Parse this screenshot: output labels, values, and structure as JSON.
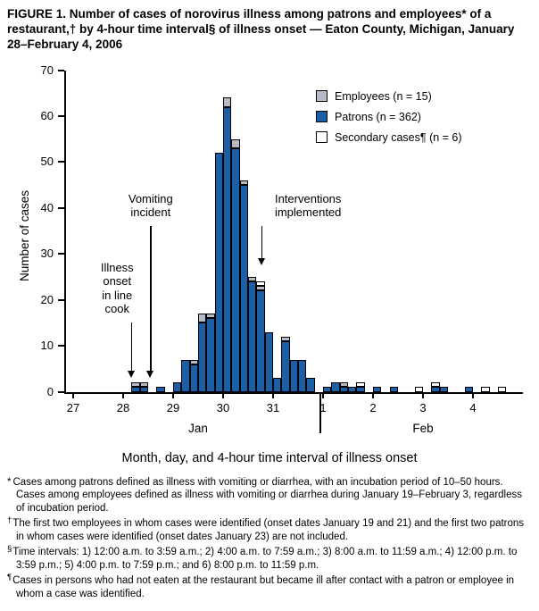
{
  "title": "FIGURE 1. Number of cases of norovirus illness among patrons and employees* of a restaurant,† by 4-hour time interval§ of illness onset — Eaton County, Michigan, January 28–February 4, 2006",
  "chart_data": {
    "type": "bar",
    "stacked": true,
    "ylabel": "Number of cases",
    "xlabel": "Month, day, and 4-hour time interval of illness onset",
    "ylim": [
      0,
      70
    ],
    "ytick_step": 10,
    "intervals_per_day": 6,
    "days": [
      "27",
      "28",
      "29",
      "30",
      "31",
      "1",
      "2",
      "3",
      "4"
    ],
    "months": [
      {
        "label": "Jan",
        "center_day_index": 2.5
      },
      {
        "label": "Feb",
        "center_day_index": 7
      }
    ],
    "month_separator_day_index": 5,
    "legend_position": "top-right",
    "grid": false,
    "legend": [
      {
        "key": "employees",
        "label": "Employees (n = 15)",
        "color": "#b6bac4"
      },
      {
        "key": "patrons",
        "label": "Patrons (n = 362)",
        "color": "#1d5fa6"
      },
      {
        "key": "secondary",
        "label": "Secondary cases¶ (n = 6)",
        "color": "#ffffff"
      }
    ],
    "series_order": [
      "patrons",
      "employees",
      "secondary"
    ],
    "bars": [
      {
        "day": "Jan 28",
        "d": 1,
        "i": 2,
        "patrons": 1,
        "employees": 1,
        "secondary": 0
      },
      {
        "day": "Jan 28",
        "d": 1,
        "i": 3,
        "patrons": 1,
        "employees": 1,
        "secondary": 0
      },
      {
        "day": "Jan 28",
        "d": 1,
        "i": 5,
        "patrons": 1,
        "employees": 0,
        "secondary": 0
      },
      {
        "day": "Jan 29",
        "d": 2,
        "i": 1,
        "patrons": 2,
        "employees": 0,
        "secondary": 0
      },
      {
        "day": "Jan 29",
        "d": 2,
        "i": 2,
        "patrons": 7,
        "employees": 0,
        "secondary": 0
      },
      {
        "day": "Jan 29",
        "d": 2,
        "i": 3,
        "patrons": 6,
        "employees": 1,
        "secondary": 0
      },
      {
        "day": "Jan 29",
        "d": 2,
        "i": 4,
        "patrons": 15,
        "employees": 2,
        "secondary": 0
      },
      {
        "day": "Jan 29",
        "d": 2,
        "i": 5,
        "patrons": 16,
        "employees": 1,
        "secondary": 0
      },
      {
        "day": "Jan 29",
        "d": 2,
        "i": 6,
        "patrons": 52,
        "employees": 0,
        "secondary": 0
      },
      {
        "day": "Jan 30",
        "d": 3,
        "i": 1,
        "patrons": 62,
        "employees": 2,
        "secondary": 0
      },
      {
        "day": "Jan 30",
        "d": 3,
        "i": 2,
        "patrons": 53,
        "employees": 2,
        "secondary": 0
      },
      {
        "day": "Jan 30",
        "d": 3,
        "i": 3,
        "patrons": 45,
        "employees": 1,
        "secondary": 0
      },
      {
        "day": "Jan 30",
        "d": 3,
        "i": 4,
        "patrons": 24,
        "employees": 1,
        "secondary": 0
      },
      {
        "day": "Jan 30",
        "d": 3,
        "i": 5,
        "patrons": 22,
        "employees": 1,
        "secondary": 1
      },
      {
        "day": "Jan 30",
        "d": 3,
        "i": 6,
        "patrons": 13,
        "employees": 0,
        "secondary": 0
      },
      {
        "day": "Jan 31",
        "d": 4,
        "i": 1,
        "patrons": 3,
        "employees": 0,
        "secondary": 0
      },
      {
        "day": "Jan 31",
        "d": 4,
        "i": 2,
        "patrons": 11,
        "employees": 1,
        "secondary": 0
      },
      {
        "day": "Jan 31",
        "d": 4,
        "i": 3,
        "patrons": 7,
        "employees": 0,
        "secondary": 0
      },
      {
        "day": "Jan 31",
        "d": 4,
        "i": 4,
        "patrons": 7,
        "employees": 0,
        "secondary": 0
      },
      {
        "day": "Jan 31",
        "d": 4,
        "i": 5,
        "patrons": 3,
        "employees": 0,
        "secondary": 0
      },
      {
        "day": "Feb 1",
        "d": 5,
        "i": 1,
        "patrons": 1,
        "employees": 0,
        "secondary": 0
      },
      {
        "day": "Feb 1",
        "d": 5,
        "i": 2,
        "patrons": 2,
        "employees": 0,
        "secondary": 0
      },
      {
        "day": "Feb 1",
        "d": 5,
        "i": 3,
        "patrons": 1,
        "employees": 1,
        "secondary": 0
      },
      {
        "day": "Feb 1",
        "d": 5,
        "i": 4,
        "patrons": 1,
        "employees": 0,
        "secondary": 0
      },
      {
        "day": "Feb 1",
        "d": 5,
        "i": 5,
        "patrons": 1,
        "employees": 0,
        "secondary": 1
      },
      {
        "day": "Feb 2",
        "d": 6,
        "i": 1,
        "patrons": 1,
        "employees": 0,
        "secondary": 0
      },
      {
        "day": "Feb 2",
        "d": 6,
        "i": 3,
        "patrons": 1,
        "employees": 0,
        "secondary": 0
      },
      {
        "day": "Feb 2",
        "d": 6,
        "i": 6,
        "patrons": 0,
        "employees": 0,
        "secondary": 1
      },
      {
        "day": "Feb 3",
        "d": 7,
        "i": 2,
        "patrons": 1,
        "employees": 0,
        "secondary": 1
      },
      {
        "day": "Feb 3",
        "d": 7,
        "i": 3,
        "patrons": 1,
        "employees": 0,
        "secondary": 0
      },
      {
        "day": "Feb 3",
        "d": 7,
        "i": 6,
        "patrons": 1,
        "employees": 0,
        "secondary": 0
      },
      {
        "day": "Feb 4",
        "d": 8,
        "i": 2,
        "patrons": 0,
        "employees": 0,
        "secondary": 1
      },
      {
        "day": "Feb 4",
        "d": 8,
        "i": 4,
        "patrons": 0,
        "employees": 0,
        "secondary": 1
      }
    ],
    "annotations": [
      {
        "id": "illness-onset-in-line-cook",
        "lines": [
          "Illness",
          "onset",
          "in line",
          "cook"
        ],
        "text_day": 0.88,
        "text_value": 28.5,
        "arrow_day": 1.17,
        "arrow_from_value": 15,
        "arrow_to_value": 3
      },
      {
        "id": "vomiting-incident",
        "lines": [
          "Vomiting",
          "incident"
        ],
        "text_day": 1.55,
        "text_value": 43.5,
        "arrow_day": 1.55,
        "arrow_from_value": 36,
        "arrow_to_value": 3
      },
      {
        "id": "interventions-implemented",
        "lines": [
          "Interventions",
          "implemented"
        ],
        "text_day": 4.7,
        "text_value": 43.5,
        "arrow_day": 3.78,
        "arrow_from_value": 36,
        "arrow_to_value": 27.5
      }
    ]
  },
  "footnotes": [
    {
      "marker": "*",
      "sup": false,
      "text": "Cases among patrons defined as illness with vomiting or diarrhea, with an incubation period of 10–50 hours. Cases among employees defined as illness with vomiting or diarrhea during January 19–February 3, regardless of incubation period."
    },
    {
      "marker": "†",
      "sup": true,
      "text": "The first two employees in whom cases were identified (onset dates January 19 and 21) and the first two patrons in whom cases were identified (onset dates January 23) are not included."
    },
    {
      "marker": "§",
      "sup": true,
      "text": "Time intervals: 1) 12:00 a.m. to 3:59 a.m.; 2) 4:00 a.m. to 7:59 a.m.; 3) 8:00 a.m. to 11:59 a.m.; 4) 12:00 p.m. to 3:59 p.m.; 5) 4:00 p.m. to 7:59 p.m.; and 6) 8:00 p.m. to 11:59 p.m."
    },
    {
      "marker": "¶",
      "sup": true,
      "text": "Cases in persons who had not eaten at the restaurant but became ill after contact with a patron or employee in whom a case was identified."
    }
  ]
}
